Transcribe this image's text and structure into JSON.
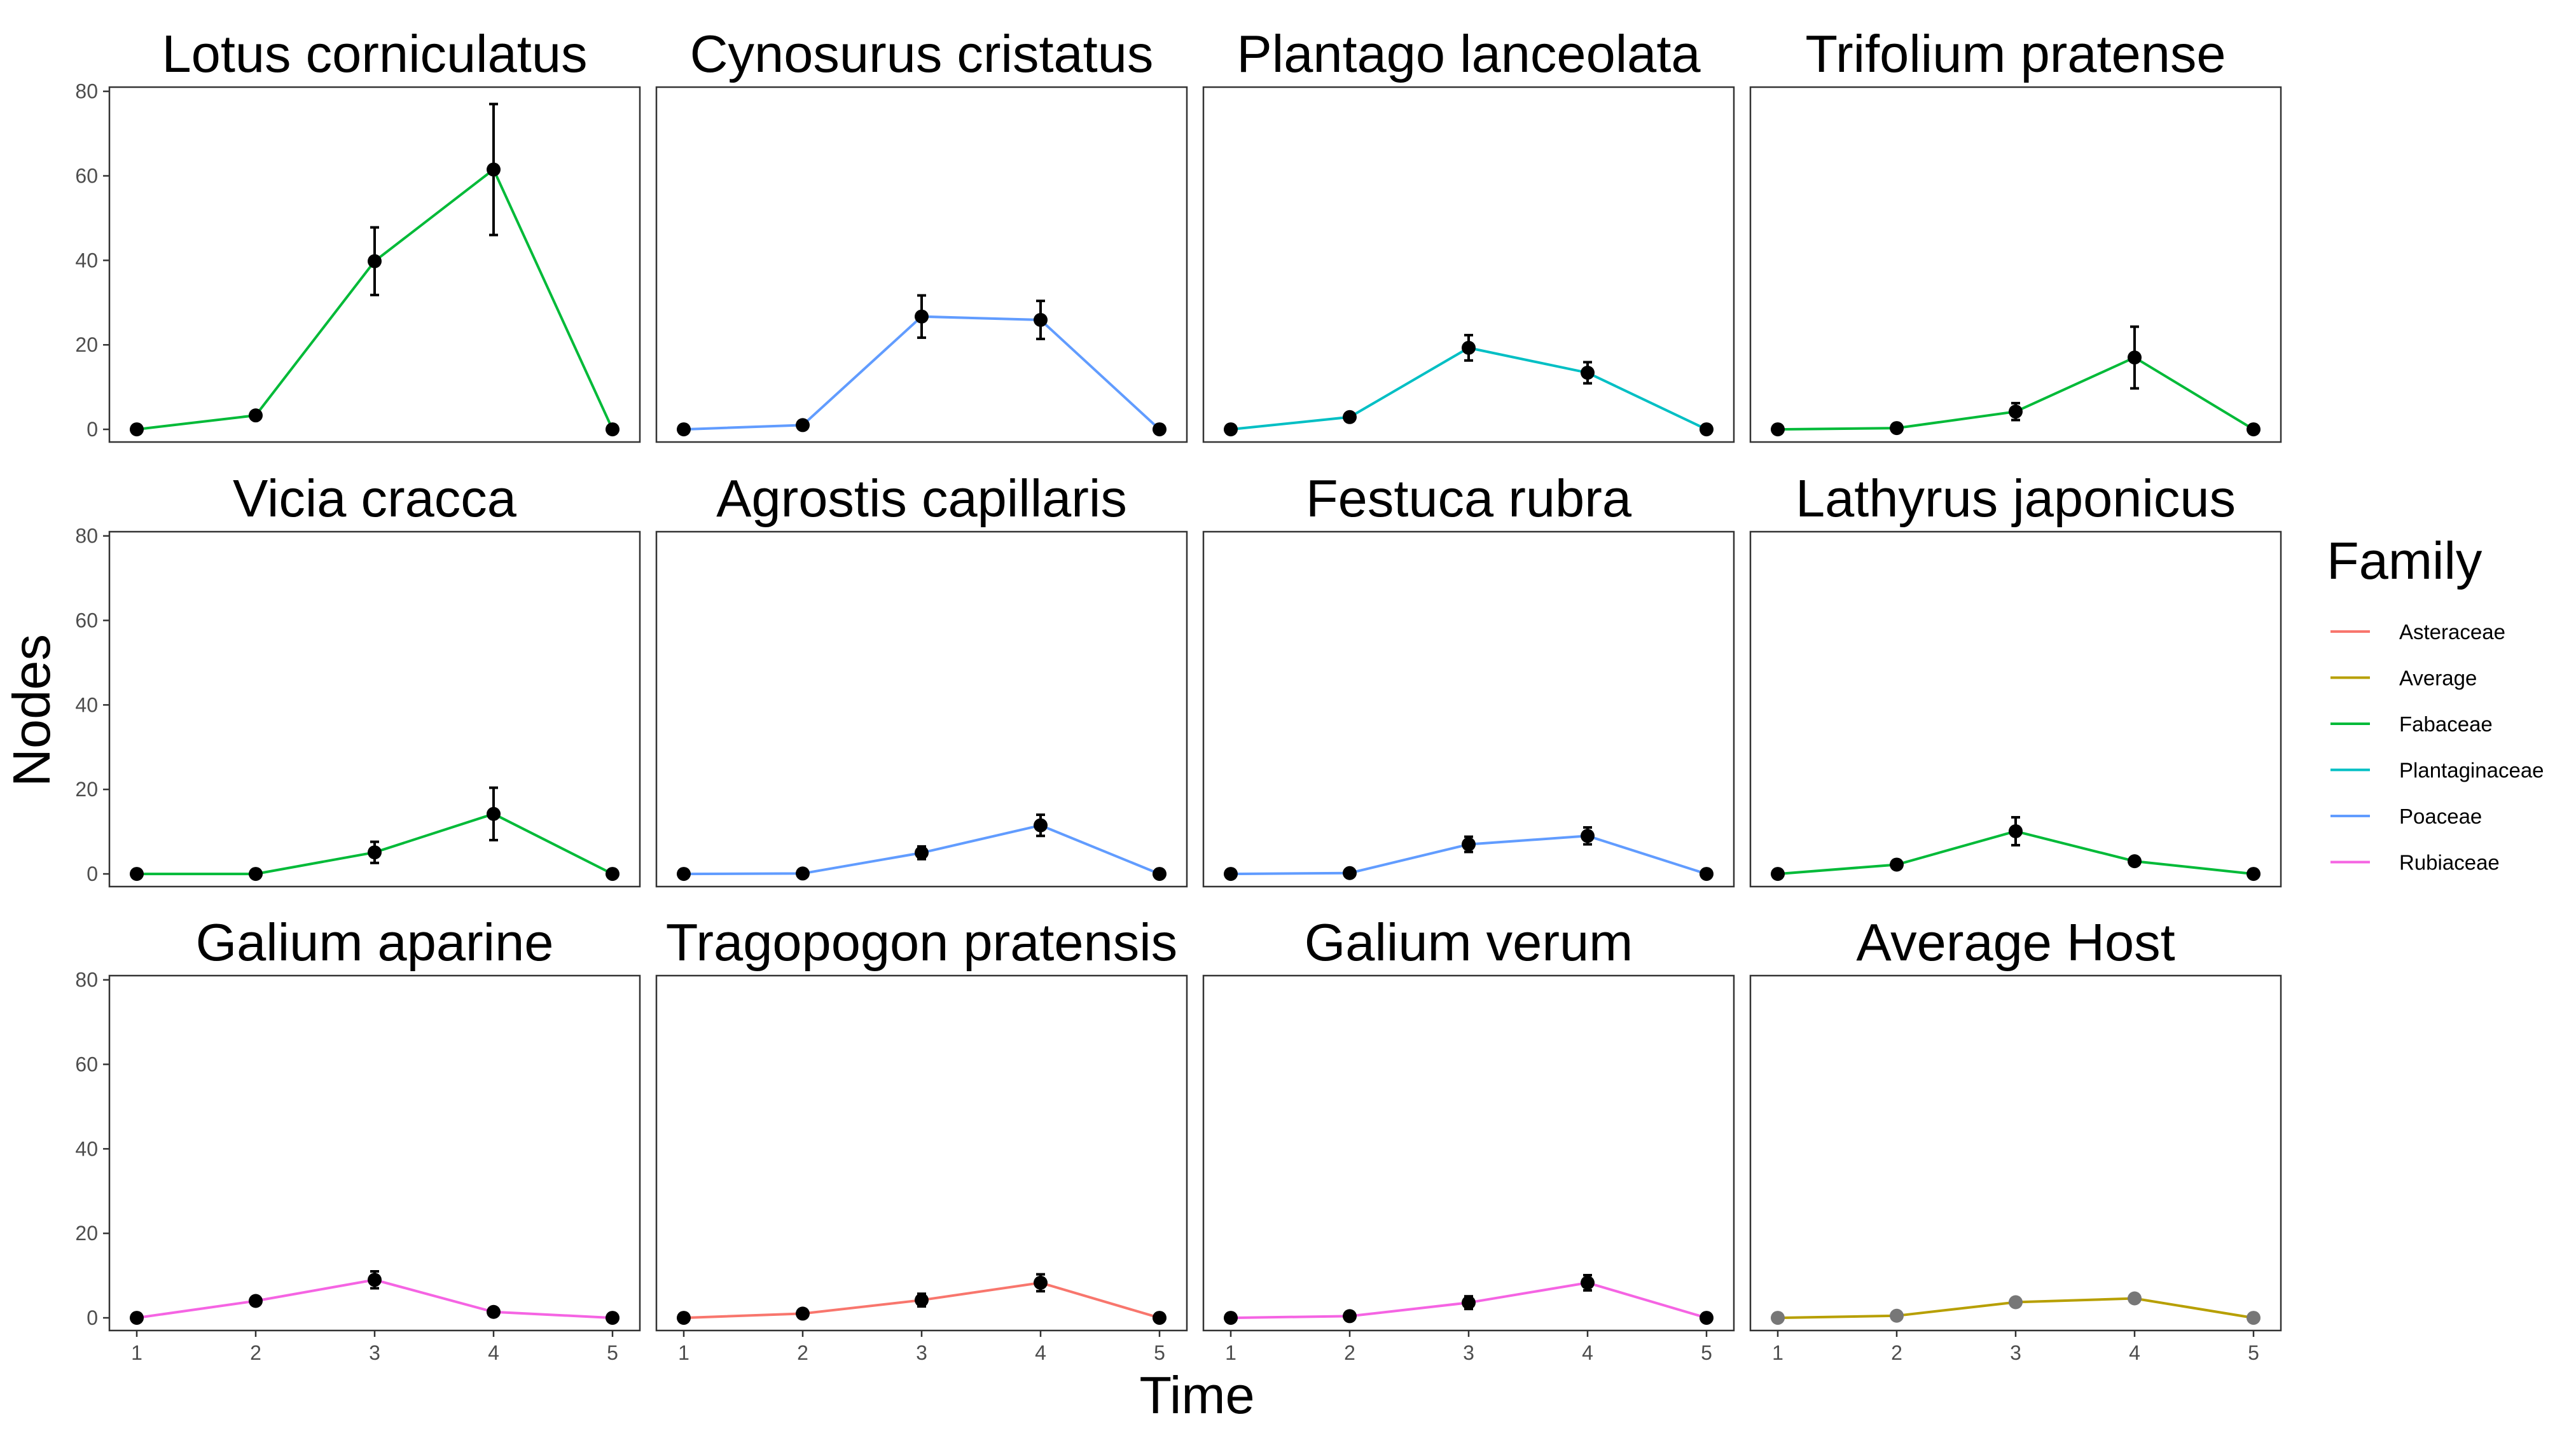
{
  "chart_data": {
    "type": "line",
    "xlabel": "Time",
    "ylabel": "Nodes",
    "x": [
      1,
      2,
      3,
      4,
      5
    ],
    "xticks": [
      "1",
      "2",
      "3",
      "4",
      "5"
    ],
    "yticks": [
      "0",
      "20",
      "40",
      "60",
      "80"
    ],
    "ylim": [
      -3,
      81
    ],
    "xlim": [
      0.77,
      5.23
    ],
    "grid": false,
    "facets": {
      "rows": 3,
      "cols": 4,
      "shared_y": true,
      "shared_x": true
    },
    "legend": {
      "title": "Family",
      "placement": "right",
      "entries": [
        {
          "label": "Asteraceae",
          "color": "#F8766D"
        },
        {
          "label": "Average",
          "color": "#B79F00"
        },
        {
          "label": "Fabaceae",
          "color": "#00BA38"
        },
        {
          "label": "Plantaginaceae",
          "color": "#00BFC4"
        },
        {
          "label": "Poaceae",
          "color": "#619CFF"
        },
        {
          "label": "Rubiaceae",
          "color": "#F564E3"
        }
      ]
    },
    "panels": [
      {
        "title": "Lotus corniculatus",
        "family": "Fabaceae",
        "color": "#00BA38",
        "values": [
          0,
          3.3,
          39.8,
          61.5,
          0
        ],
        "errors": [
          0,
          0,
          8,
          15.5,
          0
        ]
      },
      {
        "title": "Cynosurus cristatus",
        "family": "Poaceae",
        "color": "#619CFF",
        "values": [
          0,
          1,
          26.7,
          25.9,
          0
        ],
        "errors": [
          0,
          0,
          5,
          4.5,
          0
        ]
      },
      {
        "title": "Plantago lanceolata",
        "family": "Plantaginaceae",
        "color": "#00BFC4",
        "values": [
          0,
          2.9,
          19.3,
          13.4,
          0
        ],
        "errors": [
          0,
          0,
          3,
          2.5,
          0
        ]
      },
      {
        "title": "Trifolium pratense",
        "family": "Fabaceae",
        "color": "#00BA38",
        "values": [
          0,
          0.3,
          4.2,
          17,
          0
        ],
        "errors": [
          0,
          0,
          2,
          7.3,
          0
        ]
      },
      {
        "title": "Vicia cracca",
        "family": "Fabaceae",
        "color": "#00BA38",
        "values": [
          0,
          0,
          5.1,
          14.2,
          0
        ],
        "errors": [
          0,
          0,
          2.5,
          6.2,
          0
        ]
      },
      {
        "title": "Agrostis capillaris",
        "family": "Poaceae",
        "color": "#619CFF",
        "values": [
          0,
          0.1,
          5,
          11.5,
          0
        ],
        "errors": [
          0,
          0,
          1.5,
          2.5,
          0
        ]
      },
      {
        "title": "Festuca rubra",
        "family": "Poaceae",
        "color": "#619CFF",
        "values": [
          0,
          0.2,
          7,
          9,
          0
        ],
        "errors": [
          0,
          0,
          1.8,
          2,
          0
        ]
      },
      {
        "title": "Lathyrus japonicus",
        "family": "Fabaceae",
        "color": "#00BA38",
        "values": [
          0,
          2.2,
          10.1,
          3,
          0
        ],
        "errors": [
          0,
          0,
          3.3,
          0,
          0
        ]
      },
      {
        "title": "Galium aparine",
        "family": "Rubiaceae",
        "color": "#F564E3",
        "values": [
          0,
          4,
          9,
          1.4,
          0
        ],
        "errors": [
          0,
          0,
          2,
          0,
          0
        ]
      },
      {
        "title": "Tragopogon pratensis",
        "family": "Asteraceae",
        "color": "#F8766D",
        "values": [
          0,
          1,
          4.2,
          8.3,
          0
        ],
        "errors": [
          0,
          0,
          1.5,
          2,
          0
        ]
      },
      {
        "title": "Galium verum",
        "family": "Rubiaceae",
        "color": "#F564E3",
        "values": [
          0,
          0.4,
          3.6,
          8.3,
          0
        ],
        "errors": [
          0,
          0,
          1.5,
          1.8,
          0
        ]
      },
      {
        "title": "Average Host",
        "family": "Average",
        "color": "#B79F00",
        "values": [
          0,
          0.5,
          3.7,
          4.6,
          0
        ],
        "errors": [
          0,
          0,
          0,
          0,
          0
        ],
        "point_color": "#777777"
      }
    ]
  }
}
